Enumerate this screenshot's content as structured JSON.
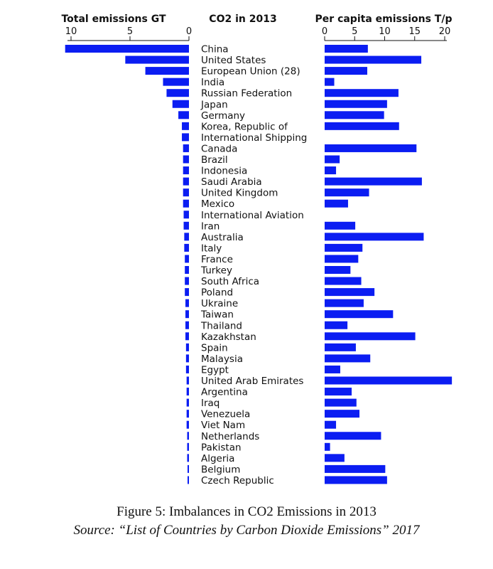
{
  "caption": {
    "title": "Figure 5: Imbalances in CO2 Emissions in 2013",
    "source": "Source: “List of Countries by Carbon Dioxide Emissions” 2017"
  },
  "chart_data": {
    "type": "bar",
    "title": "CO2 in 2013",
    "bar_color": "#0b1df2",
    "categories": [
      "China",
      "United States",
      "European Union (28)",
      "India",
      "Russian Federation",
      "Japan",
      "Germany",
      "Korea, Republic of",
      "International Shipping",
      "Canada",
      "Brazil",
      "Indonesia",
      "Saudi Arabia",
      "United Kingdom",
      "Mexico",
      "International Aviation",
      "Iran",
      "Australia",
      "Italy",
      "France",
      "Turkey",
      "South Africa",
      "Poland",
      "Ukraine",
      "Taiwan",
      "Thailand",
      "Kazakhstan",
      "Spain",
      "Malaysia",
      "Egypt",
      "United Arab Emirates",
      "Argentina",
      "Iraq",
      "Venezuela",
      "Viet Nam",
      "Netherlands",
      "Pakistan",
      "Algeria",
      "Belgium",
      "Czech Republic"
    ],
    "series": [
      {
        "name": "Total emissions GT",
        "xlim": [
          10,
          0
        ],
        "ticks": [
          "10",
          "5",
          "0"
        ],
        "values": [
          10.5,
          5.4,
          3.7,
          2.2,
          1.9,
          1.4,
          0.9,
          0.6,
          0.6,
          0.5,
          0.5,
          0.5,
          0.5,
          0.5,
          0.5,
          0.45,
          0.45,
          0.4,
          0.4,
          0.35,
          0.35,
          0.35,
          0.35,
          0.3,
          0.3,
          0.3,
          0.3,
          0.25,
          0.25,
          0.25,
          0.2,
          0.2,
          0.2,
          0.2,
          0.2,
          0.15,
          0.15,
          0.15,
          0.12,
          0.12
        ]
      },
      {
        "name": "Per capita emissions T/p",
        "xlim": [
          0,
          20
        ],
        "ticks": [
          "0",
          "5",
          "10",
          "15",
          "20"
        ],
        "values": [
          7.2,
          16.1,
          7.1,
          1.6,
          12.3,
          10.4,
          9.9,
          12.4,
          0,
          15.3,
          2.5,
          1.9,
          16.2,
          7.4,
          3.9,
          0,
          5.1,
          16.5,
          6.3,
          5.6,
          4.3,
          6.1,
          8.3,
          6.5,
          11.4,
          3.8,
          15.1,
          5.2,
          7.6,
          2.6,
          21.2,
          4.5,
          5.3,
          5.8,
          1.9,
          9.4,
          0.9,
          3.3,
          10.1,
          10.4
        ]
      }
    ]
  }
}
